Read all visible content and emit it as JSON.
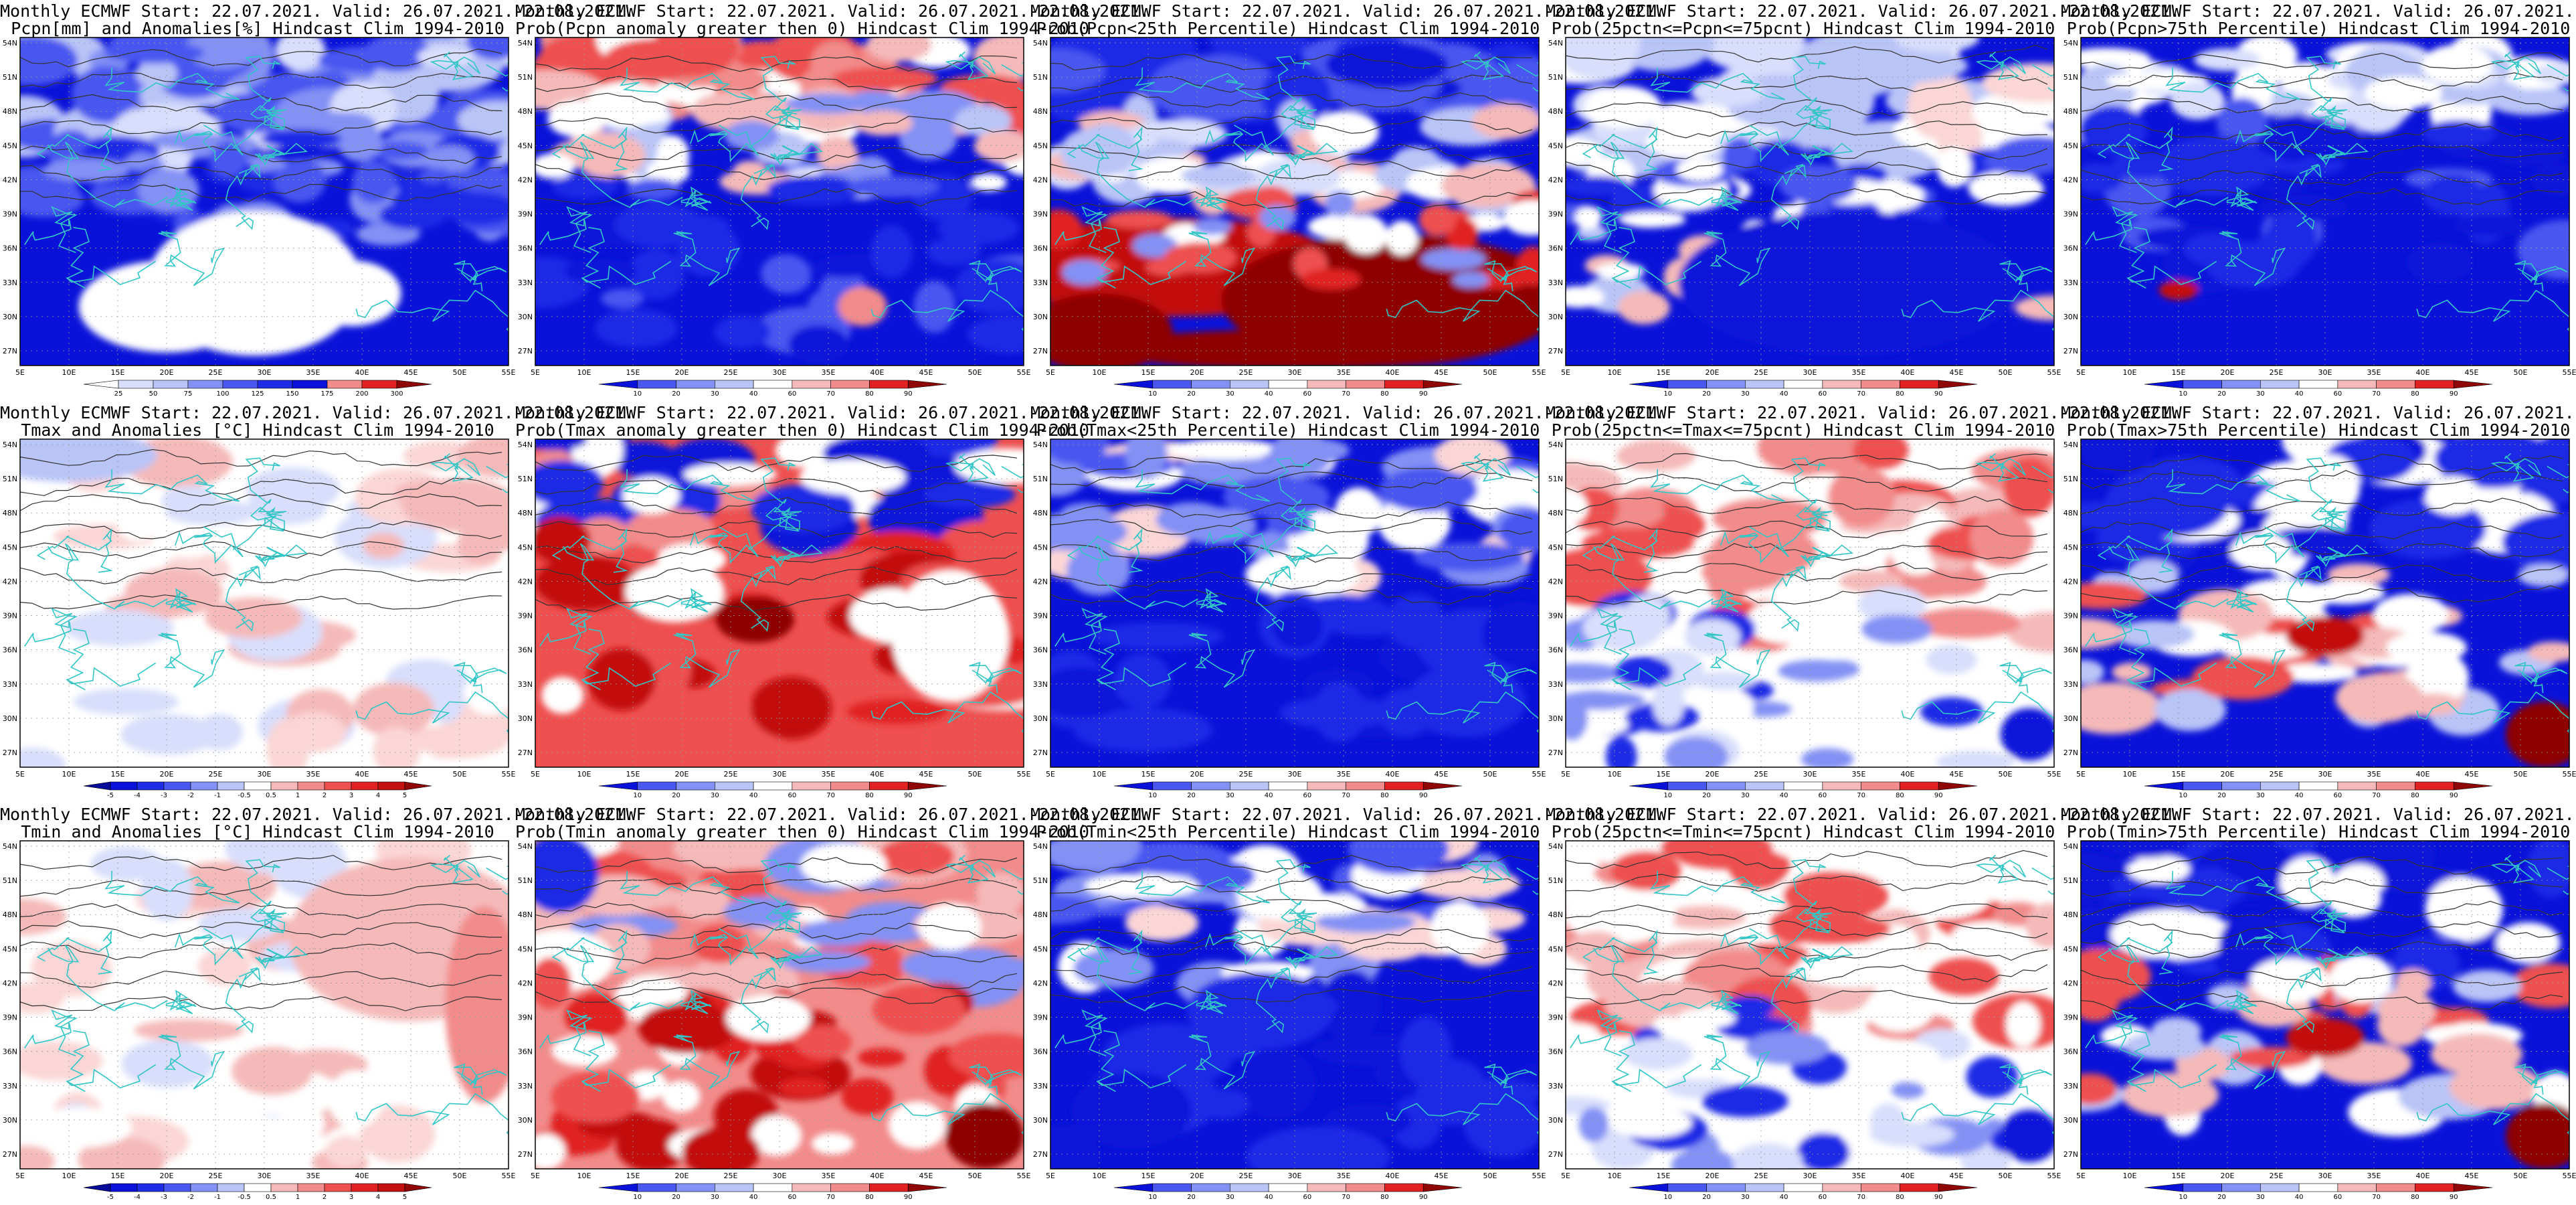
{
  "header": "Monthly ECMWF Start: 22.07.2021. Valid: 26.07.2021.-22.08.2021.",
  "axes": {
    "lon_labels": [
      "5E",
      "10E",
      "15E",
      "20E",
      "25E",
      "30E",
      "35E",
      "40E",
      "45E",
      "50E",
      "55E"
    ],
    "lat_labels": [
      "54N",
      "51N",
      "48N",
      "45N",
      "42N",
      "39N",
      "36N",
      "33N",
      "30N",
      "27N"
    ]
  },
  "scales": {
    "precip": [
      "25",
      "50",
      "75",
      "100",
      "125",
      "150",
      "175",
      "200",
      "300"
    ],
    "prob": [
      "10",
      "20",
      "30",
      "40",
      "60",
      "70",
      "80",
      "90"
    ],
    "anom": [
      "-5",
      "-4",
      "-3",
      "-2",
      "-1",
      "-0.5",
      "0.5",
      "1",
      "2",
      "3",
      "4",
      "5"
    ]
  },
  "panels": [
    {
      "id": "p1",
      "title": "Pcpn[mm] and Anomalies[%] Hindcast Clim 1994-2010",
      "kind": "pcpn_anom",
      "scale": "precip"
    },
    {
      "id": "p2",
      "title": "Prob(Pcpn anomaly greater then 0) Hindcast Clim 1994-2010",
      "kind": "prob_gt0",
      "scale": "prob"
    },
    {
      "id": "p3",
      "title": "Prob(Pcpn<25th Percentile) Hindcast Clim 1994-2010",
      "kind": "lt25",
      "scale": "prob"
    },
    {
      "id": "p4",
      "title": "Prob(25pctn<=Pcpn<=75pcnt) Hindcast Clim 1994-2010",
      "kind": "mid",
      "scale": "prob"
    },
    {
      "id": "p5",
      "title": "Prob(Pcpn>75th Percentile) Hindcast Clim 1994-2010",
      "kind": "gt75",
      "scale": "prob"
    },
    {
      "id": "p6",
      "title": "Tmax and Anomalies [°C] Hindcast Clim 1994-2010",
      "kind": "t_anom",
      "scale": "anom"
    },
    {
      "id": "p7",
      "title": "Prob(Tmax anomaly greater then 0) Hindcast Clim 1994-2010",
      "kind": "t_prob_gt0",
      "scale": "prob"
    },
    {
      "id": "p8",
      "title": "Prob(Tmax<25th Percentile) Hindcast Clim 1994-2010",
      "kind": "t_lt25",
      "scale": "prob"
    },
    {
      "id": "p9",
      "title": "Prob(25pctn<=Tmax<=75pcnt) Hindcast Clim 1994-2010",
      "kind": "t_mid",
      "scale": "prob"
    },
    {
      "id": "p10",
      "title": "Prob(Tmax>75th Percentile) Hindcast Clim 1994-2010",
      "kind": "t_gt75",
      "scale": "prob"
    },
    {
      "id": "p11",
      "title": "Tmin and Anomalies [°C] Hindcast Clim 1994-2010",
      "kind": "t_anom2",
      "scale": "anom"
    },
    {
      "id": "p12",
      "title": "Prob(Tmin anomaly greater then 0) Hindcast Clim 1994-2010",
      "kind": "t_prob_gt0b",
      "scale": "prob"
    },
    {
      "id": "p13",
      "title": "Prob(Tmin<25th Percentile) Hindcast Clim 1994-2010",
      "kind": "t_lt25b",
      "scale": "prob"
    },
    {
      "id": "p14",
      "title": "Prob(25pctn<=Tmin<=75pcnt) Hindcast Clim 1994-2010",
      "kind": "t_midb",
      "scale": "prob"
    },
    {
      "id": "p15",
      "title": "Prob(Tmin>75th Percentile) Hindcast Clim 1994-2010",
      "kind": "t_gt75b",
      "scale": "prob"
    }
  ],
  "colors": {
    "coast": "#33c6c6",
    "contour": "#333333",
    "deep_blue": "#0a12d9",
    "mid_blue": "#4a57f0",
    "light_blue": "#b9c4f7",
    "white": "#ffffff",
    "light_red": "#f5b9b9",
    "mid_red": "#ee4f4f",
    "deep_red": "#c31111",
    "dark_red": "#8e0606"
  }
}
